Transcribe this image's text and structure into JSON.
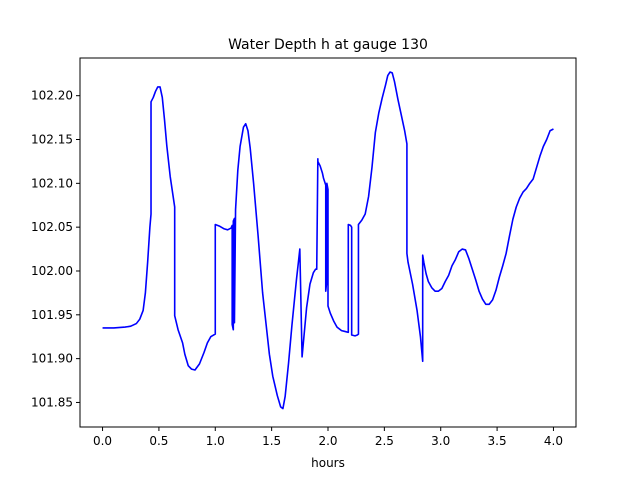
{
  "chart_data": {
    "type": "line",
    "title": "Water Depth h at gauge 130",
    "xlabel": "hours",
    "ylabel": "",
    "xlim": [
      -0.2,
      4.2
    ],
    "ylim": [
      101.822,
      102.243
    ],
    "xticks": [
      0.0,
      0.5,
      1.0,
      1.5,
      2.0,
      2.5,
      3.0,
      3.5,
      4.0
    ],
    "xtick_labels": [
      "0.0",
      "0.5",
      "1.0",
      "1.5",
      "2.0",
      "2.5",
      "3.0",
      "3.5",
      "4.0"
    ],
    "yticks": [
      101.85,
      101.9,
      101.95,
      102.0,
      102.05,
      102.1,
      102.15,
      102.2
    ],
    "ytick_labels": [
      "101.85",
      "101.90",
      "101.95",
      "102.00",
      "102.05",
      "102.10",
      "102.15",
      "102.20"
    ],
    "grid": false,
    "line_color": "#0000ff",
    "series": [
      {
        "name": "",
        "x": [
          0.0,
          0.1,
          0.2,
          0.25,
          0.3,
          0.33,
          0.36,
          0.38,
          0.4,
          0.42,
          0.43,
          0.43,
          0.45,
          0.47,
          0.49,
          0.51,
          0.53,
          0.55,
          0.57,
          0.6,
          0.64,
          0.64,
          0.67,
          0.71,
          0.73,
          0.76,
          0.79,
          0.82,
          0.86,
          0.9,
          0.93,
          0.96,
          1.0,
          1.0,
          1.04,
          1.08,
          1.11,
          1.14,
          1.15,
          1.15,
          1.16,
          1.16,
          1.17,
          1.17,
          1.18,
          1.2,
          1.22,
          1.25,
          1.27,
          1.29,
          1.31,
          1.34,
          1.38,
          1.42,
          1.45,
          1.48,
          1.51,
          1.55,
          1.58,
          1.6,
          1.62,
          1.65,
          1.68,
          1.72,
          1.74,
          1.75,
          1.77,
          1.79,
          1.81,
          1.84,
          1.87,
          1.89,
          1.9,
          1.91,
          1.91,
          1.93,
          1.95,
          1.96,
          1.98,
          1.98,
          1.99,
          1.99,
          2.0,
          2.0,
          2.02,
          2.05,
          2.08,
          2.12,
          2.15,
          2.18,
          2.18,
          2.2,
          2.21,
          2.21,
          2.24,
          2.26,
          2.27,
          2.27,
          2.3,
          2.33,
          2.36,
          2.39,
          2.42,
          2.45,
          2.48,
          2.51,
          2.53,
          2.55,
          2.57,
          2.59,
          2.62,
          2.65,
          2.68,
          2.7,
          2.7,
          2.71,
          2.75,
          2.79,
          2.82,
          2.84,
          2.84,
          2.85,
          2.87,
          2.89,
          2.92,
          2.95,
          2.98,
          3.01,
          3.04,
          3.07,
          3.1,
          3.13,
          3.16,
          3.19,
          3.22,
          3.25,
          3.28,
          3.31,
          3.34,
          3.37,
          3.4,
          3.43,
          3.46,
          3.49,
          3.52,
          3.55,
          3.58,
          3.61,
          3.64,
          3.67,
          3.7,
          3.73,
          3.76,
          3.79,
          3.82,
          3.85,
          3.88,
          3.91,
          3.94,
          3.97,
          4.0
        ],
        "values": [
          101.935,
          101.935,
          101.936,
          101.937,
          101.94,
          101.945,
          101.955,
          101.975,
          102.01,
          102.05,
          102.065,
          102.193,
          102.198,
          102.205,
          102.21,
          102.21,
          102.198,
          102.172,
          102.143,
          102.108,
          102.073,
          101.949,
          101.933,
          101.918,
          101.905,
          101.892,
          101.888,
          101.887,
          101.894,
          101.907,
          101.918,
          101.925,
          101.928,
          102.053,
          102.051,
          102.048,
          102.047,
          102.049,
          102.052,
          101.939,
          101.933,
          102.057,
          102.06,
          101.941,
          102.07,
          102.115,
          102.142,
          102.164,
          102.168,
          102.16,
          102.14,
          102.1,
          102.04,
          101.975,
          101.94,
          101.905,
          101.88,
          101.858,
          101.845,
          101.843,
          101.857,
          101.895,
          101.938,
          101.99,
          102.013,
          102.025,
          101.902,
          101.93,
          101.958,
          101.985,
          101.998,
          102.002,
          102.002,
          102.128,
          102.125,
          102.12,
          102.112,
          102.106,
          102.098,
          101.977,
          101.99,
          102.1,
          102.093,
          101.96,
          101.952,
          101.943,
          101.936,
          101.932,
          101.931,
          101.93,
          102.053,
          102.052,
          102.05,
          101.927,
          101.926,
          101.927,
          101.928,
          102.053,
          102.058,
          102.065,
          102.085,
          102.118,
          102.158,
          102.18,
          102.197,
          102.212,
          102.223,
          102.227,
          102.226,
          102.216,
          102.196,
          102.178,
          102.16,
          102.145,
          102.02,
          102.01,
          101.985,
          101.955,
          101.925,
          101.897,
          102.018,
          102.01,
          101.997,
          101.988,
          101.981,
          101.977,
          101.977,
          101.98,
          101.988,
          101.995,
          102.006,
          102.013,
          102.022,
          102.025,
          102.024,
          102.014,
          102.002,
          101.99,
          101.977,
          101.968,
          101.962,
          101.962,
          101.967,
          101.978,
          101.993,
          102.006,
          102.02,
          102.04,
          102.059,
          102.073,
          102.083,
          102.09,
          102.094,
          102.1,
          102.105,
          102.118,
          102.131,
          102.142,
          102.15,
          102.16,
          102.162
        ]
      }
    ]
  }
}
